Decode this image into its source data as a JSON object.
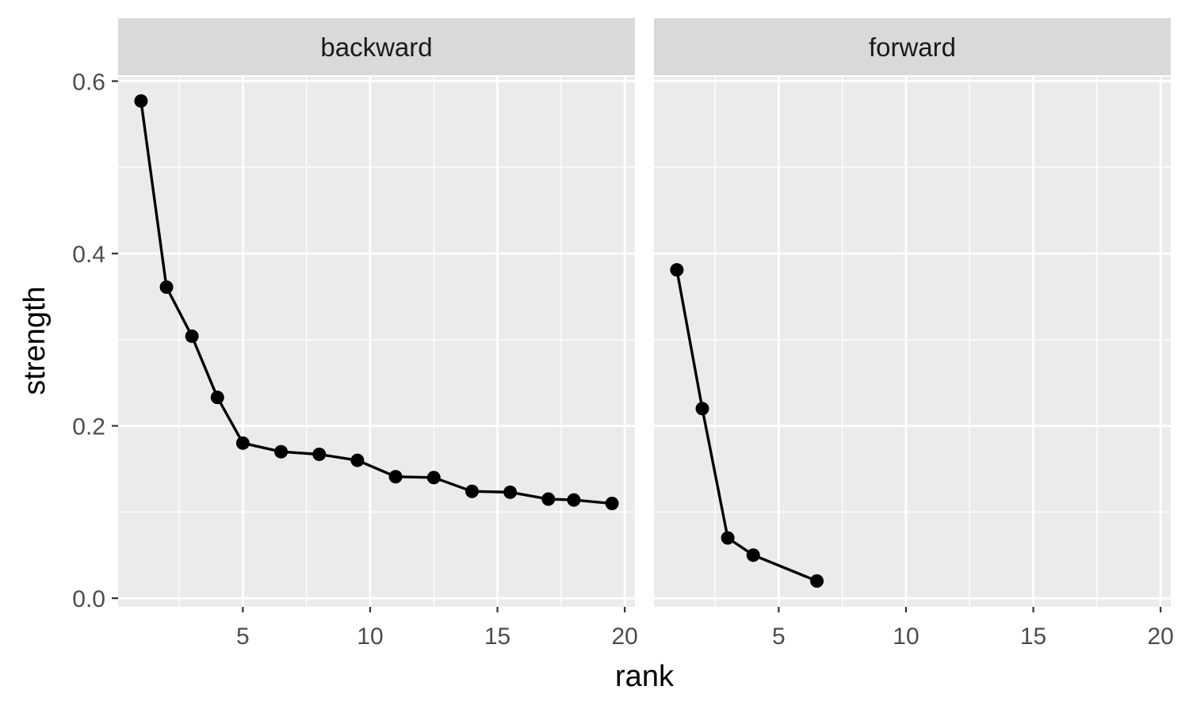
{
  "chart_data": {
    "type": "line",
    "facets": [
      "backward",
      "forward"
    ],
    "xlabel": "rank",
    "ylabel": "strength",
    "xlim": [
      0.1,
      20.4
    ],
    "ylim": [
      -0.01,
      0.605
    ],
    "x_ticks": [
      5,
      10,
      15,
      20
    ],
    "y_ticks": [
      0.0,
      0.2,
      0.4,
      0.6
    ],
    "y_tick_labels": [
      "0.0",
      "0.2",
      "0.4",
      "0.6"
    ],
    "grid": true,
    "series": [
      {
        "facet": "backward",
        "x": [
          1,
          2,
          3,
          4,
          5,
          6.5,
          8,
          9.5,
          11,
          12.5,
          14,
          15.5,
          17,
          18,
          19.5
        ],
        "y": [
          0.577,
          0.361,
          0.304,
          0.233,
          0.18,
          0.17,
          0.167,
          0.16,
          0.141,
          0.14,
          0.124,
          0.123,
          0.115,
          0.114,
          0.11
        ]
      },
      {
        "facet": "forward",
        "x": [
          1,
          2,
          3,
          4,
          6.5
        ],
        "y": [
          0.381,
          0.22,
          0.07,
          0.05,
          0.02
        ]
      }
    ],
    "colors": {
      "panel_background": "#EBEBEB",
      "strip_background": "#D9D9D9",
      "grid": "#FFFFFF",
      "line": "#000000",
      "point": "#000000"
    }
  }
}
